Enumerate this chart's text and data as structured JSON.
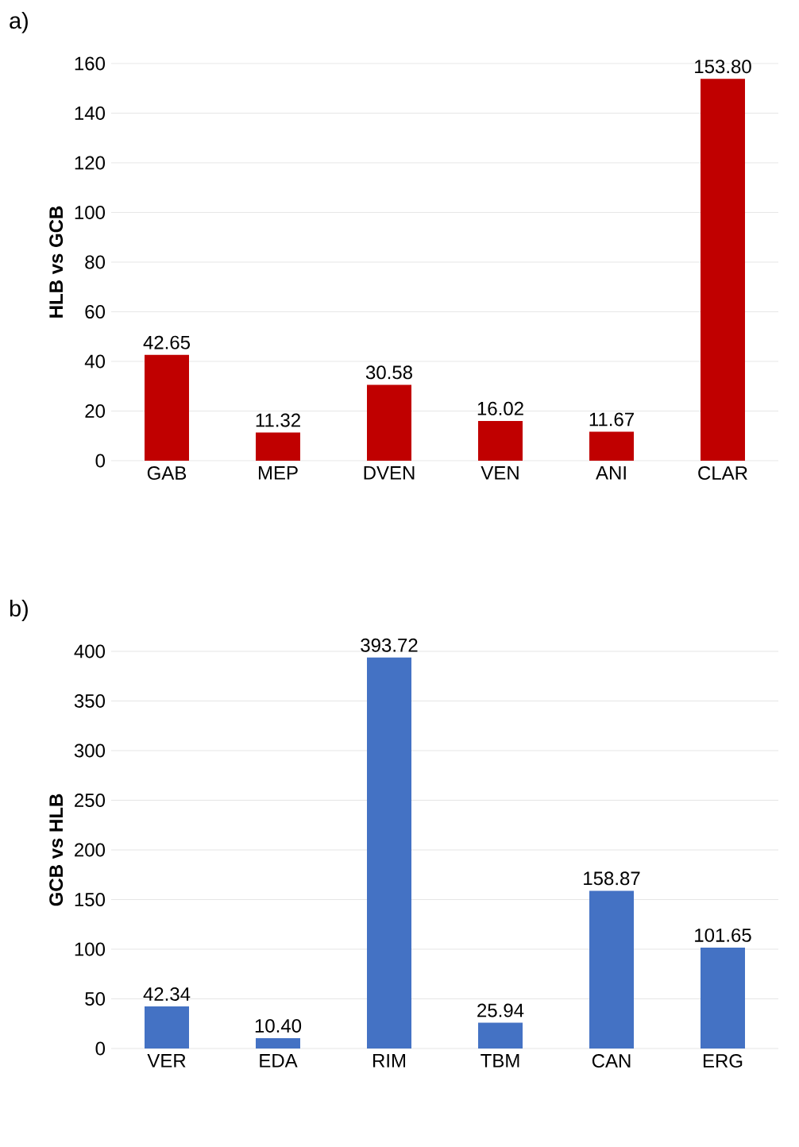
{
  "chart_data": [
    {
      "type": "bar",
      "title": "a)",
      "ylabel": "HLB vs GCB",
      "categories": [
        "GAB",
        "MEP",
        "DVEN",
        "VEN",
        "ANI",
        "CLAR"
      ],
      "values": [
        42.65,
        11.32,
        30.58,
        16.02,
        11.67,
        153.8
      ],
      "value_labels": [
        "42.65",
        "11.32",
        "30.58",
        "16.02",
        "11.67",
        "153.80"
      ],
      "color": "#c00000",
      "ylim": [
        0,
        160
      ],
      "yticks": [
        0,
        20,
        40,
        60,
        80,
        100,
        120,
        140,
        160
      ],
      "grid": "y"
    },
    {
      "type": "bar",
      "title": "b)",
      "ylabel": "GCB vs HLB",
      "categories": [
        "VER",
        "EDA",
        "RIM",
        "TBM",
        "CAN",
        "ERG"
      ],
      "values": [
        42.34,
        10.4,
        393.72,
        25.94,
        158.87,
        101.65
      ],
      "value_labels": [
        "42.34",
        "10.40",
        "393.72",
        "25.94",
        "158.87",
        "101.65"
      ],
      "color": "#4472c4",
      "ylim": [
        0,
        400
      ],
      "yticks": [
        0,
        50,
        100,
        150,
        200,
        250,
        300,
        350,
        400
      ],
      "grid": "y"
    }
  ]
}
